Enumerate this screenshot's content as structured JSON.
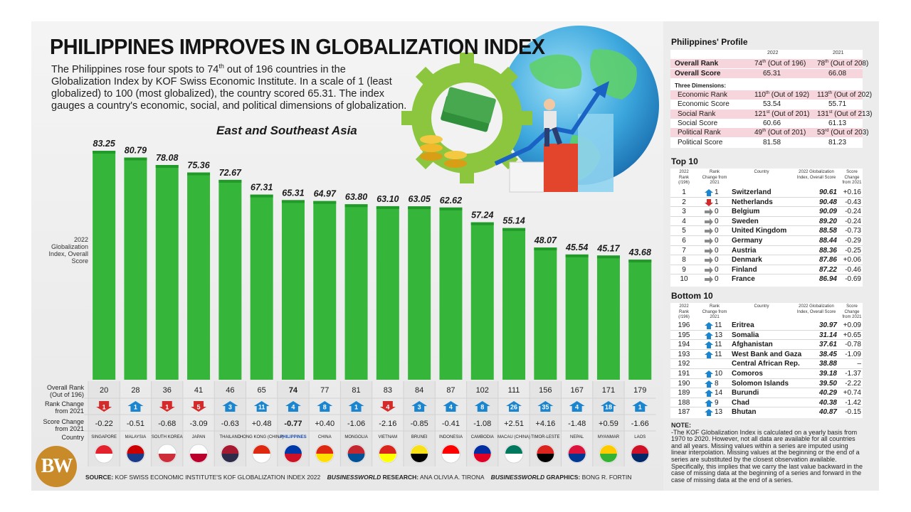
{
  "headline": "PHILIPPINES IMPROVES IN GLOBALIZATION INDEX",
  "intro_before_sup": "The Philippines rose four spots to 74",
  "intro_sup": "th",
  "intro_after_sup": " out of 196 countries in the Globalization Index by KOF Swiss Economic Institute. In a scale of 1 (least globalized) to 100 (most globalized), the country scored 65.31. The index gauges a country's economic, social, and political dimensions of globalization.",
  "colors": {
    "bar": "#36b53b",
    "bar_dark": "#229a2a",
    "up": "#1b86cf",
    "down": "#d42a2a",
    "same": "#8a8a8a",
    "highlight_text": "#1a4fb4",
    "pink": "#f6d6dc"
  },
  "chart_data": {
    "type": "bar",
    "title": "East and Southeast Asia",
    "ylabel": "2022 Globalization Index, Overall Score",
    "ylim": [
      0,
      100
    ],
    "categories": [
      "SINGAPORE",
      "MALAYSIA",
      "SOUTH KOREA",
      "JAPAN",
      "THAILAND",
      "HONG KONG (CHINA)",
      "PHILIPPINES",
      "CHINA",
      "MONGOLIA",
      "VIETNAM",
      "BRUNEI",
      "INDONESIA",
      "CAMBODIA",
      "MACAU (CHINA)",
      "TIMOR-LESTE",
      "NEPAL",
      "MYANMAR",
      "LAOS"
    ],
    "values": [
      83.25,
      80.79,
      78.08,
      75.36,
      72.67,
      67.31,
      65.31,
      64.97,
      63.8,
      63.1,
      63.05,
      62.62,
      57.24,
      55.14,
      48.07,
      45.54,
      45.17,
      43.68
    ],
    "value_labels": [
      "83.25",
      "80.79",
      "78.08",
      "75.36",
      "72.67",
      "67.31",
      "65.31",
      "64.97",
      "63.80",
      "63.10",
      "63.05",
      "62.62",
      "57.24",
      "55.14",
      "48.07",
      "45.54",
      "45.17",
      "43.68"
    ],
    "overall_rank": [
      "20",
      "28",
      "36",
      "41",
      "46",
      "65",
      "74",
      "77",
      "81",
      "83",
      "84",
      "87",
      "102",
      "111",
      "156",
      "167",
      "171",
      "179"
    ],
    "rank_change": [
      "1",
      "1",
      "1",
      "5",
      "3",
      "11",
      "4",
      "8",
      "1",
      "4",
      "3",
      "4",
      "8",
      "26",
      "35",
      "4",
      "18",
      "1"
    ],
    "rank_direction": [
      "down",
      "up",
      "down",
      "down",
      "up",
      "up",
      "up",
      "up",
      "up",
      "down",
      "up",
      "up",
      "up",
      "up",
      "up",
      "up",
      "up",
      "up"
    ],
    "score_change": [
      "-0.22",
      "-0.51",
      "-0.68",
      "-3.09",
      "-0.63",
      "+0.48",
      "-0.77",
      "+0.40",
      "-1.06",
      "-2.16",
      "-0.85",
      "-0.41",
      "-1.08",
      "+2.51",
      "+4.16",
      "-1.48",
      "+0.59",
      "-1.66"
    ],
    "highlight_index": 6
  },
  "row_labels": {
    "overall_rank": "Overall Rank (Out of 196)",
    "rank_change": "Rank Change from 2021",
    "score_change": "Score Change from 2021",
    "country": "Country"
  },
  "source": {
    "label": "SOURCE:",
    "text": "KOF SWISS ECONOMIC INSTITUTE'S KOF GLOBALIZATION INDEX 2022",
    "research_label": "BUSINESSWORLD",
    "research_word": "RESEARCH:",
    "research_name": "ANA OLIVIA A. TIRONA",
    "graphics_label": "BUSINESSWORLD",
    "graphics_word": "GRAPHICS:",
    "graphics_name": "BONG R. FORTIN"
  },
  "logo_text": "BW",
  "profile": {
    "title": "Philippines' Profile",
    "year_2022": "2022",
    "year_2021": "2021",
    "overall_rank": {
      "label": "Overall Rank",
      "v2022": "74",
      "s2022": "th",
      "o2022": " (Out of 196)",
      "v2021": "78",
      "s2021": "th",
      "o2021": " (Out of 208)"
    },
    "overall_score": {
      "label": "Overall Score",
      "v2022": "65.31",
      "v2021": "66.08"
    },
    "dims_label": "Three Dimensions:",
    "rows": [
      {
        "label": "Economic Rank",
        "v2022": "110",
        "s2022": "th",
        "o2022": " (Out of 192)",
        "v2021": "113",
        "s2021": "th",
        "o2021": " (Out of 202)"
      },
      {
        "label": "Economic Score",
        "v2022": "53.54",
        "s2022": "",
        "o2022": "",
        "v2021": "55.71",
        "s2021": "",
        "o2021": ""
      },
      {
        "label": "Social Rank",
        "v2022": "121",
        "s2022": "st",
        "o2022": " (Out of 201)",
        "v2021": "131",
        "s2021": "st",
        "o2021": " (Out of 213)"
      },
      {
        "label": "Social Score",
        "v2022": "60.66",
        "s2022": "",
        "o2022": "",
        "v2021": "61.13",
        "s2021": "",
        "o2021": ""
      },
      {
        "label": "Political Rank",
        "v2022": "49",
        "s2022": "th",
        "o2022": " (Out of 201)",
        "v2021": "53",
        "s2021": "rd",
        "o2021": " (Out of 203)"
      },
      {
        "label": "Political Score",
        "v2022": "81.58",
        "s2022": "",
        "o2022": "",
        "v2021": "81.23",
        "s2021": "",
        "o2021": ""
      }
    ]
  },
  "top10": {
    "title": "Top 10",
    "headers": {
      "rank": "2022 Rank (/196)",
      "change": "Rank Change from 2021",
      "country": "Country",
      "score": "2022 Globalization Index, Overall Score",
      "score_change": "Score Change from 2021"
    },
    "rows": [
      {
        "rank": "1",
        "dir": "up",
        "change": "1",
        "country": "Switzerland",
        "score": "90.61",
        "score_change": "+0.16"
      },
      {
        "rank": "2",
        "dir": "down",
        "change": "1",
        "country": "Netherlands",
        "score": "90.48",
        "score_change": "-0.43"
      },
      {
        "rank": "3",
        "dir": "same",
        "change": "0",
        "country": "Belgium",
        "score": "90.09",
        "score_change": "-0.24"
      },
      {
        "rank": "4",
        "dir": "same",
        "change": "0",
        "country": "Sweden",
        "score": "89.20",
        "score_change": "-0.24"
      },
      {
        "rank": "5",
        "dir": "same",
        "change": "0",
        "country": "United Kingdom",
        "score": "88.58",
        "score_change": "-0.73"
      },
      {
        "rank": "6",
        "dir": "same",
        "change": "0",
        "country": "Germany",
        "score": "88.44",
        "score_change": "-0.29"
      },
      {
        "rank": "7",
        "dir": "same",
        "change": "0",
        "country": "Austria",
        "score": "88.36",
        "score_change": "-0.25"
      },
      {
        "rank": "8",
        "dir": "same",
        "change": "0",
        "country": "Denmark",
        "score": "87.86",
        "score_change": "+0.06"
      },
      {
        "rank": "9",
        "dir": "same",
        "change": "0",
        "country": "Finland",
        "score": "87.22",
        "score_change": "-0.46"
      },
      {
        "rank": "10",
        "dir": "same",
        "change": "0",
        "country": "France",
        "score": "86.94",
        "score_change": "-0.69"
      }
    ]
  },
  "bottom10": {
    "title": "Bottom 10",
    "headers": {
      "rank": "2022 Rank (/196)",
      "change": "Rank Change from 2021",
      "country": "Country",
      "score": "2022 Globalization Index, Overall Score",
      "score_change": "Score Change from 2021"
    },
    "rows": [
      {
        "rank": "196",
        "dir": "up",
        "change": "11",
        "country": "Eritrea",
        "score": "30.97",
        "score_change": "+0.09"
      },
      {
        "rank": "195",
        "dir": "up",
        "change": "13",
        "country": "Somalia",
        "score": "31.14",
        "score_change": "+0.65"
      },
      {
        "rank": "194",
        "dir": "up",
        "change": "11",
        "country": "Afghanistan",
        "score": "37.61",
        "score_change": "-0.78"
      },
      {
        "rank": "193",
        "dir": "up",
        "change": "11",
        "country": "West Bank and Gaza",
        "score": "38.45",
        "score_change": "-1.09"
      },
      {
        "rank": "192",
        "dir": "none",
        "change": "",
        "country": "Central African Rep.",
        "score": "38.88",
        "score_change": "–"
      },
      {
        "rank": "191",
        "dir": "up",
        "change": "10",
        "country": "Comoros",
        "score": "39.18",
        "score_change": "-1.37"
      },
      {
        "rank": "190",
        "dir": "up",
        "change": "8",
        "country": "Solomon Islands",
        "score": "39.50",
        "score_change": "-2.22"
      },
      {
        "rank": "189",
        "dir": "up",
        "change": "14",
        "country": "Burundi",
        "score": "40.29",
        "score_change": "+0.74"
      },
      {
        "rank": "188",
        "dir": "up",
        "change": "9",
        "country": "Chad",
        "score": "40.38",
        "score_change": "-1.42"
      },
      {
        "rank": "187",
        "dir": "up",
        "change": "13",
        "country": "Bhutan",
        "score": "40.87",
        "score_change": "-0.15"
      }
    ]
  },
  "note": {
    "title": "NOTE:",
    "text": "-The KOF Globalization Index is calculated on a yearly basis from 1970 to 2020. However, not all data are available for all countries and all years. Missing values within a series are imputed using linear interpolation. Missing values at the beginning or the end of a series are substituted by the closest observation available. Specifically, this implies that we carry the last value backward in the case of missing data at the beginning of a series and forward in the case of missing data at the end of a series."
  }
}
